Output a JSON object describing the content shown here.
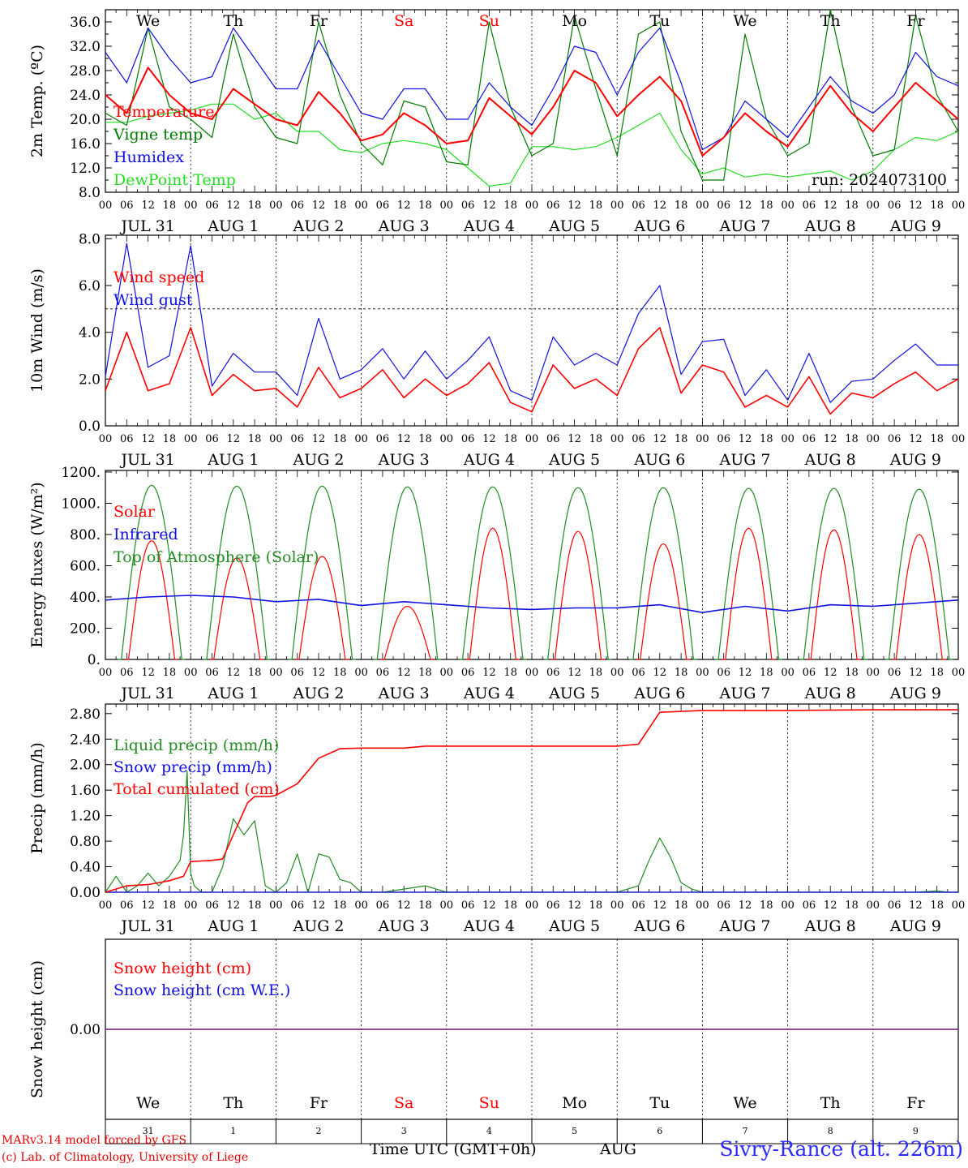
{
  "footer": {
    "model_line": "MARv3.14 model forced by GFS",
    "credit_line": "(c) Lab. of Climatology, University of Liege",
    "axis_title": "Time UTC (GMT+0h)",
    "month": "AUG",
    "site": "Sivry-Rance (alt. 226m)"
  },
  "run_label": "run: 2024073100",
  "time_axis": {
    "hour_ticks": [
      "00",
      "06",
      "12",
      "18"
    ],
    "date_labels": [
      "JUL 31",
      "AUG  1",
      "AUG  2",
      "AUG  3",
      "AUG  4",
      "AUG  5",
      "AUG  6",
      "AUG  7",
      "AUG  8",
      "AUG  9"
    ],
    "weekdays": [
      "We",
      "Th",
      "Fr",
      "Sa",
      "Su",
      "Mo",
      "Tu",
      "We",
      "Th",
      "Fr"
    ],
    "weekend_color": "#ff0000",
    "day_numbers": [
      "31",
      "1",
      "2",
      "3",
      "4",
      "5",
      "6",
      "7",
      "8",
      "9"
    ]
  },
  "chart_data": [
    {
      "type": "line",
      "ylabel": "2m Temp. (ºC)",
      "ylim": [
        8,
        38
      ],
      "yticks": [
        "8.0",
        "12.0",
        "16.0",
        "20.0",
        "24.0",
        "28.0",
        "32.0",
        "36.0"
      ],
      "grid": "dotted vertical at day boundaries",
      "legend": "top-left",
      "x_unit": "hours from 2024-07-31 00 UTC",
      "series": [
        {
          "name": "Temperature",
          "color": "#ff0000",
          "x": [
            0,
            6,
            12,
            18,
            24,
            30,
            36,
            42,
            48,
            54,
            60,
            66,
            72,
            78,
            84,
            90,
            96,
            102,
            108,
            114,
            120,
            126,
            132,
            138,
            144,
            150,
            156,
            162,
            168,
            174,
            180,
            186,
            192,
            198,
            204,
            210,
            216,
            222,
            228,
            234,
            240
          ],
          "values": [
            24,
            21,
            28.5,
            24,
            21,
            20,
            25,
            22.5,
            20,
            19,
            24.5,
            21,
            16.5,
            17.5,
            21,
            19,
            16,
            16.5,
            23.5,
            20.5,
            17.5,
            22,
            28,
            26,
            20.5,
            24,
            27,
            23,
            14,
            17,
            21,
            18,
            15.5,
            20.5,
            25.5,
            21,
            18,
            22,
            26,
            23,
            20
          ]
        },
        {
          "name": "Vigne temp",
          "color": "#007a00",
          "x": [
            0,
            6,
            12,
            18,
            24,
            30,
            36,
            42,
            48,
            54,
            60,
            66,
            72,
            78,
            84,
            90,
            96,
            102,
            108,
            114,
            120,
            126,
            132,
            138,
            144,
            150,
            156,
            162,
            168,
            174,
            180,
            186,
            192,
            198,
            204,
            210,
            216,
            222,
            228,
            234,
            240
          ],
          "values": [
            21,
            19,
            35,
            22,
            20,
            17,
            34,
            22,
            17,
            16,
            36,
            24,
            16,
            12.5,
            23,
            22,
            13,
            12.5,
            36,
            22,
            14,
            16,
            37,
            25,
            14,
            34,
            36,
            18,
            10,
            10,
            34,
            20,
            14,
            16,
            38,
            22,
            14,
            15,
            37,
            24,
            18
          ]
        },
        {
          "name": "Humidex",
          "color": "#1010e0",
          "x": [
            0,
            6,
            12,
            18,
            24,
            30,
            36,
            42,
            48,
            54,
            60,
            66,
            72,
            78,
            84,
            90,
            96,
            102,
            108,
            114,
            120,
            126,
            132,
            138,
            144,
            150,
            156,
            162,
            168,
            174,
            180,
            186,
            192,
            198,
            204,
            210,
            216,
            222,
            228,
            234,
            240
          ],
          "values": [
            31,
            26,
            35,
            30,
            26,
            27,
            35,
            30,
            25,
            25,
            33,
            27,
            21,
            20,
            25,
            25,
            20,
            20,
            26,
            22,
            19,
            25,
            32,
            31,
            24,
            31,
            35,
            26,
            15,
            17,
            23,
            20,
            17,
            22,
            27,
            23,
            21,
            24,
            31,
            27,
            25.5
          ]
        },
        {
          "name": "DewPoint Temp",
          "color": "#22dd22",
          "x": [
            0,
            6,
            12,
            18,
            24,
            30,
            36,
            42,
            48,
            54,
            60,
            66,
            72,
            78,
            84,
            90,
            96,
            102,
            108,
            114,
            120,
            126,
            132,
            138,
            144,
            150,
            156,
            162,
            168,
            174,
            180,
            186,
            192,
            198,
            204,
            210,
            216,
            222,
            228,
            234,
            240
          ],
          "values": [
            19.5,
            19.5,
            20.5,
            21,
            21.5,
            22.5,
            22.5,
            20,
            21,
            18,
            18,
            15,
            14.5,
            16,
            16.5,
            16,
            15,
            12,
            9,
            9.5,
            15.5,
            15.5,
            15,
            15.5,
            17,
            19,
            21,
            15,
            11,
            12,
            10.5,
            11,
            10.5,
            11,
            11.5,
            10,
            11.5,
            15,
            17,
            16.5,
            18
          ]
        }
      ]
    },
    {
      "type": "line",
      "ylabel": "10m Wind (m/s)",
      "ylim": [
        0,
        8
      ],
      "yticks": [
        "0.0",
        "2.0",
        "4.0",
        "6.0",
        "8.0"
      ],
      "reference_line": 5,
      "grid": "dotted vertical at day boundaries",
      "legend": "top-left",
      "x_unit": "hours from 2024-07-31 00 UTC",
      "series": [
        {
          "name": "Wind speed",
          "color": "#ff0000",
          "x": [
            0,
            6,
            12,
            18,
            24,
            30,
            36,
            42,
            48,
            54,
            60,
            66,
            72,
            78,
            84,
            90,
            96,
            102,
            108,
            114,
            120,
            126,
            132,
            138,
            144,
            150,
            156,
            162,
            168,
            174,
            180,
            186,
            192,
            198,
            204,
            210,
            216,
            222,
            228,
            234,
            240
          ],
          "values": [
            1.5,
            4,
            1.5,
            1.8,
            4.2,
            1.3,
            2.2,
            1.5,
            1.6,
            0.8,
            2.5,
            1.2,
            1.6,
            2.4,
            1.2,
            2,
            1.3,
            1.8,
            2.7,
            1.0,
            0.6,
            2.6,
            1.6,
            2,
            1.3,
            3.3,
            4.2,
            1.4,
            2.6,
            2.3,
            0.8,
            1.3,
            0.8,
            2.1,
            0.5,
            1.4,
            1.2,
            1.8,
            2.3,
            1.5,
            2
          ]
        },
        {
          "name": "Wind gust",
          "color": "#1010e0",
          "x": [
            0,
            6,
            12,
            18,
            24,
            30,
            36,
            42,
            48,
            54,
            60,
            66,
            72,
            78,
            84,
            90,
            96,
            102,
            108,
            114,
            120,
            126,
            132,
            138,
            144,
            150,
            156,
            162,
            168,
            174,
            180,
            186,
            192,
            198,
            204,
            210,
            216,
            222,
            228,
            234,
            240
          ],
          "values": [
            2.1,
            7.8,
            2.5,
            3.0,
            7.7,
            1.7,
            3.1,
            2.3,
            2.3,
            1.3,
            4.6,
            2,
            2.4,
            3.3,
            2,
            3.2,
            2,
            2.8,
            3.8,
            1.5,
            1.1,
            3.8,
            2.6,
            3.1,
            2.6,
            4.8,
            6.0,
            2.2,
            3.6,
            3.7,
            1.3,
            2.4,
            1.1,
            3.1,
            1.0,
            1.9,
            2.0,
            2.8,
            3.5,
            2.6,
            2.6
          ]
        }
      ]
    },
    {
      "type": "line",
      "ylabel": "Energy fluxes (W/m²)",
      "ylim": [
        0,
        1200
      ],
      "yticks": [
        "0.",
        "200.",
        "400.",
        "600.",
        "800.",
        "1000.",
        "1200."
      ],
      "grid": "dotted vertical at day boundaries",
      "legend": "top-left",
      "x_unit": "hours from 2024-07-31 00 UTC",
      "daily_peaks": {
        "name_solar": "Solar",
        "name_toa": "Top of Atmosphere (Solar)",
        "peak_hour": [
          13,
          37,
          61,
          85,
          109,
          133,
          157,
          181,
          205,
          229
        ],
        "solar_peak": [
          760,
          650,
          660,
          340,
          840,
          820,
          740,
          840,
          830,
          800
        ],
        "toa_peak": [
          1115,
          1110,
          1110,
          1105,
          1105,
          1100,
          1100,
          1095,
          1095,
          1090
        ]
      },
      "series": [
        {
          "name": "Solar",
          "color": "#ff0000",
          "x": [
            13,
            37,
            61,
            85,
            109,
            133,
            157,
            181,
            205,
            229
          ],
          "values": [
            760,
            650,
            660,
            340,
            840,
            820,
            740,
            840,
            830,
            800
          ]
        },
        {
          "name": "Infrared",
          "color": "#1010e0",
          "x": [
            0,
            12,
            24,
            36,
            48,
            60,
            72,
            84,
            96,
            108,
            120,
            132,
            144,
            156,
            168,
            180,
            192,
            204,
            216,
            228,
            240
          ],
          "values": [
            380,
            400,
            410,
            400,
            370,
            385,
            345,
            370,
            350,
            330,
            320,
            330,
            330,
            350,
            300,
            340,
            310,
            350,
            340,
            360,
            380
          ]
        },
        {
          "name": "Top of Atmosphere (Solar)",
          "color": "#228b22",
          "x": [
            13,
            37,
            61,
            85,
            109,
            133,
            157,
            181,
            205,
            229
          ],
          "values": [
            1115,
            1110,
            1110,
            1105,
            1105,
            1100,
            1100,
            1095,
            1095,
            1090
          ]
        }
      ]
    },
    {
      "type": "line",
      "ylabel": "Precip (mm/h)",
      "ylim": [
        0,
        2.95
      ],
      "yticks": [
        "0.00",
        "0.40",
        "0.80",
        "1.20",
        "1.60",
        "2.00",
        "2.40",
        "2.80"
      ],
      "grid": "dotted vertical at day boundaries",
      "legend": "top-left",
      "x_unit": "hours from 2024-07-31 00 UTC",
      "series": [
        {
          "name": "Liquid precip (mm/h)",
          "color": "#228b22",
          "x": [
            0,
            3,
            6,
            9,
            12,
            15,
            18,
            21,
            22,
            23,
            24,
            25,
            27,
            30,
            33,
            36,
            39,
            42,
            45,
            48,
            51,
            54,
            57,
            60,
            63,
            66,
            69,
            72,
            78,
            84,
            90,
            96,
            102,
            108,
            114,
            120,
            126,
            132,
            138,
            144,
            150,
            153,
            156,
            159,
            162,
            165,
            168,
            180,
            192,
            204,
            216,
            228,
            234,
            237,
            240
          ],
          "values": [
            0,
            0.25,
            0,
            0.1,
            0.3,
            0.1,
            0.25,
            0.5,
            0.9,
            1.9,
            0.3,
            0.1,
            0,
            0,
            0.4,
            1.15,
            0.9,
            1.12,
            0.1,
            0,
            0.15,
            0.6,
            0,
            0.6,
            0.55,
            0.2,
            0.15,
            0,
            0,
            0.05,
            0.1,
            0,
            0,
            0,
            0,
            0,
            0,
            0,
            0,
            0,
            0.1,
            0.5,
            0.85,
            0.55,
            0.15,
            0.05,
            0,
            0,
            0,
            0,
            0,
            0,
            0.02,
            0,
            0
          ]
        },
        {
          "name": "Snow precip (mm/h)",
          "color": "#1010e0",
          "x": [
            0,
            240
          ],
          "values": [
            0,
            0
          ]
        },
        {
          "name": "Total cumulated (cm)",
          "color": "#ff0000",
          "x": [
            0,
            6,
            12,
            18,
            22,
            24,
            30,
            33,
            36,
            40,
            42,
            46,
            48,
            54,
            60,
            66,
            72,
            84,
            90,
            108,
            120,
            144,
            150,
            156,
            168,
            192,
            216,
            240
          ],
          "values": [
            0,
            0.1,
            0.12,
            0.18,
            0.25,
            0.48,
            0.5,
            0.52,
            0.9,
            1.4,
            1.5,
            1.5,
            1.52,
            1.7,
            2.1,
            2.25,
            2.26,
            2.26,
            2.29,
            2.29,
            2.29,
            2.29,
            2.32,
            2.82,
            2.85,
            2.85,
            2.86,
            2.86
          ]
        }
      ]
    },
    {
      "type": "line",
      "ylabel": "Snow height (cm)",
      "yticks": [
        "0.00"
      ],
      "legend": "top-left",
      "x_unit": "hours from 2024-07-31 00 UTC",
      "series": [
        {
          "name": "Snow height (cm)",
          "color": "#ff0000",
          "x": [
            0,
            240
          ],
          "values": [
            0,
            0
          ]
        },
        {
          "name": "Snow height (cm W.E.)",
          "color": "#1010e0",
          "x": [
            0,
            240
          ],
          "values": [
            0,
            0
          ]
        }
      ]
    }
  ]
}
